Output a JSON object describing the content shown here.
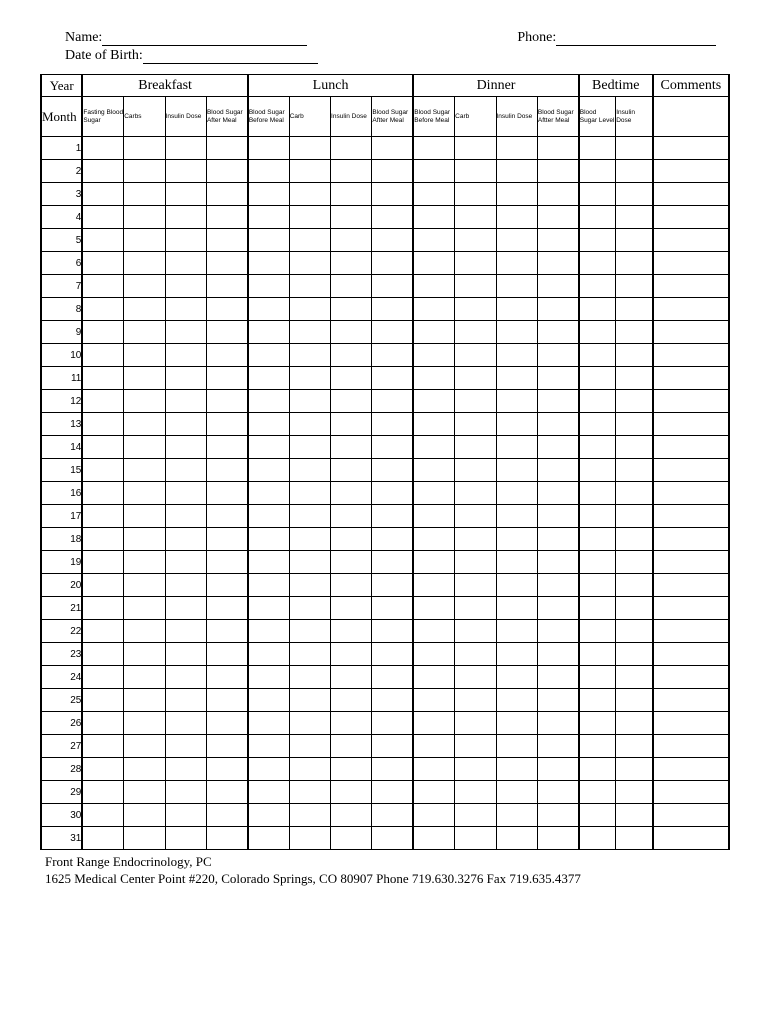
{
  "header": {
    "name_label": "Name:",
    "phone_label": "Phone:",
    "dob_label": "Date of Birth:",
    "name_line_width": 205,
    "phone_line_width": 160,
    "dob_line_width": 175,
    "phone_left_gap": 210
  },
  "table": {
    "top_headers": {
      "year": "Year",
      "breakfast": "Breakfast",
      "lunch": "Lunch",
      "dinner": "Dinner",
      "bedtime": "Bedtime",
      "comments": "Comments"
    },
    "month_label": "Month",
    "sub_headers": {
      "breakfast": [
        "Fasting Blood Sugar",
        "Carbs",
        "Insulin Dose",
        "Blood Sugar After Meal"
      ],
      "lunch": [
        "Blood Sugar Before Meal",
        "Carb",
        "Insulin Dose",
        "Blood Sugar Aftter Meal"
      ],
      "dinner": [
        "Blood Sugar Before Meal",
        "Carb",
        "Insulin Dose",
        "Blood Sugar Aftter Meal"
      ],
      "bedtime": [
        "Blood Sugar Level",
        "Insulin Dose"
      ]
    },
    "days": [
      "1",
      "2",
      "3",
      "4",
      "5",
      "6",
      "7",
      "8",
      "9",
      "10",
      "11",
      "12",
      "13",
      "14",
      "15",
      "16",
      "17",
      "18",
      "19",
      "20",
      "21",
      "22",
      "23",
      "24",
      "25",
      "26",
      "27",
      "28",
      "29",
      "30",
      "31"
    ],
    "col_widths": {
      "day": 38,
      "sub": 38,
      "bedtime_sub": 34,
      "comments": 70
    }
  },
  "footer": {
    "line1": "Front Range Endocrinology, PC",
    "line2": "1625 Medical Center Point #220, Colorado Springs, CO  80907  Phone 719.630.3276  Fax 719.635.4377"
  },
  "style": {
    "background": "#ffffff",
    "border_color": "#000000",
    "thick_border_width": 2,
    "thin_border_width": 1,
    "header_fontsize": 14,
    "subheader_fontsize": 6.5,
    "day_fontsize": 10,
    "footer_fontsize": 13
  }
}
